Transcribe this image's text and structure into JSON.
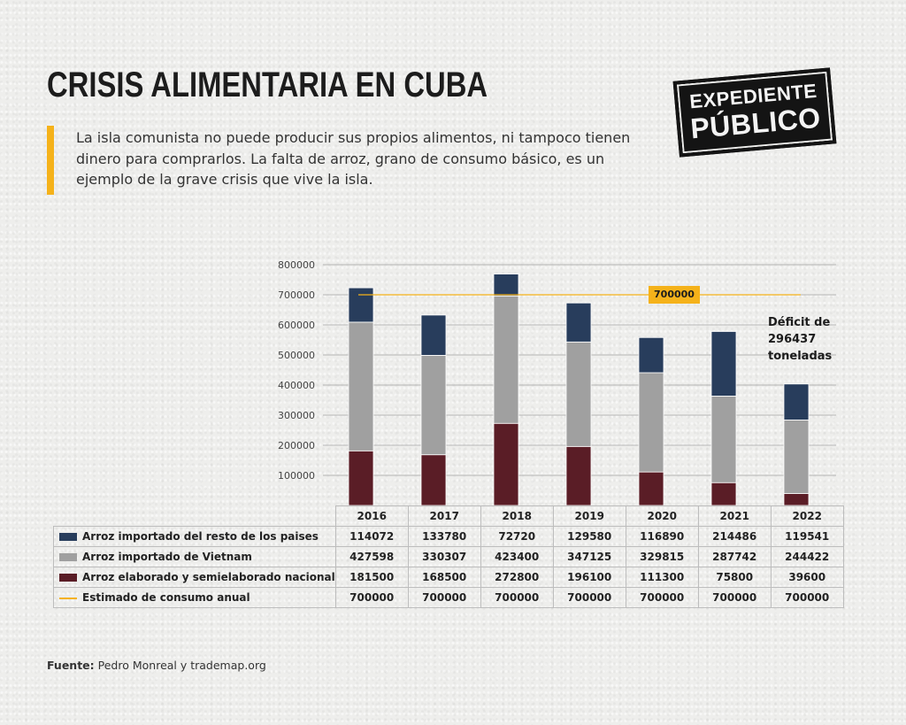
{
  "header": {
    "title": "CRISIS ALIMENTARIA EN CUBA",
    "intro": "La isla comunista no puede producir sus propios alimentos, ni tampoco tienen dinero para comprarlos. La falta de arroz, grano de consumo básico, es un ejemplo de la grave crisis que vive la isla."
  },
  "logo": {
    "line1": "EXPEDIENTE",
    "line2": "PÚBLICO"
  },
  "note": "Déficit de 296437 toneladas",
  "source": {
    "label": "Fuente:",
    "text": "Pedro Monreal y trademap.org"
  },
  "colors": {
    "resto": "#283d5c",
    "vietnam": "#a0a0a0",
    "nacional": "#5a1d26",
    "consumo": "#f5b21a"
  },
  "chart_data": {
    "type": "bar",
    "stacked": true,
    "categories": [
      "2016",
      "2017",
      "2018",
      "2019",
      "2020",
      "2021",
      "2022"
    ],
    "series": [
      {
        "name": "Arroz importado del resto de los paises",
        "values": [
          114072,
          133780,
          72720,
          129580,
          116890,
          214486,
          119541
        ]
      },
      {
        "name": "Arroz importado de Vietnam",
        "values": [
          427598,
          330307,
          423400,
          347125,
          329815,
          287742,
          244422
        ]
      },
      {
        "name": "Arroz elaborado y semielaborado nacional",
        "values": [
          181500,
          168500,
          272800,
          196100,
          111300,
          75800,
          39600
        ]
      }
    ],
    "line_series": {
      "name": "Estimado de consumo anual",
      "values": [
        700000,
        700000,
        700000,
        700000,
        700000,
        700000,
        700000
      ]
    },
    "ref_label": "700000",
    "y_ticks": [
      "100000",
      "200000",
      "300000",
      "400000",
      "500000",
      "600000",
      "700000",
      "800000"
    ],
    "ylim": [
      0,
      800000
    ],
    "grid": true,
    "legend": "table-below"
  }
}
